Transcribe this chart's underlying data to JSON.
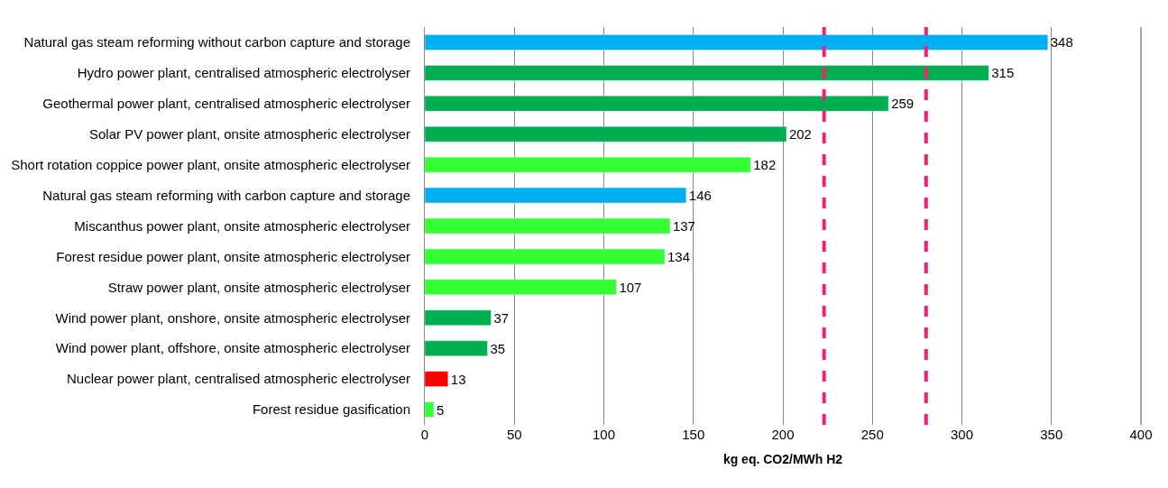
{
  "chart_data": {
    "type": "bar",
    "orientation": "horizontal",
    "categories": [
      "Natural gas steam reforming without carbon capture and storage",
      "Hydro power plant, centralised atmospheric electrolyser",
      "Geothermal power plant, centralised atmospheric electrolyser",
      "Solar PV power plant, onsite atmospheric electrolyser",
      "Short rotation coppice power plant, onsite atmospheric electrolyser",
      "Natural gas steam reforming with carbon capture and storage",
      "Miscanthus power plant, onsite atmospheric electrolyser",
      "Forest residue power plant, onsite atmospheric electrolyser",
      "Straw power plant, onsite atmospheric electrolyser",
      "Wind power plant, onshore, onsite atmospheric electrolyser",
      "Wind power plant, offshore, onsite atmospheric electrolyser",
      "Nuclear power plant, centralised atmospheric electrolyser",
      "Forest residue gasification"
    ],
    "values": [
      348,
      315,
      259,
      202,
      182,
      146,
      137,
      134,
      107,
      37,
      35,
      13,
      5
    ],
    "colors": [
      "#00b0f0",
      "#00b050",
      "#00b050",
      "#00b050",
      "#33ff33",
      "#00b0f0",
      "#33ff33",
      "#33ff33",
      "#33ff33",
      "#00b050",
      "#00b050",
      "#ff0000",
      "#33ff33"
    ],
    "xlabel": "kg eq. CO2/MWh H2",
    "xlim": [
      0,
      400
    ],
    "xticks": [
      0,
      50,
      100,
      150,
      200,
      250,
      300,
      350,
      400
    ],
    "grid": "x",
    "data_labels": true,
    "ref_lines": [
      {
        "axis": "x",
        "value": 223,
        "color": "#ff1a75",
        "line_style": "dashed"
      },
      {
        "axis": "x",
        "value": 280,
        "color": "#ff1a75",
        "line_style": "dashed"
      }
    ]
  }
}
